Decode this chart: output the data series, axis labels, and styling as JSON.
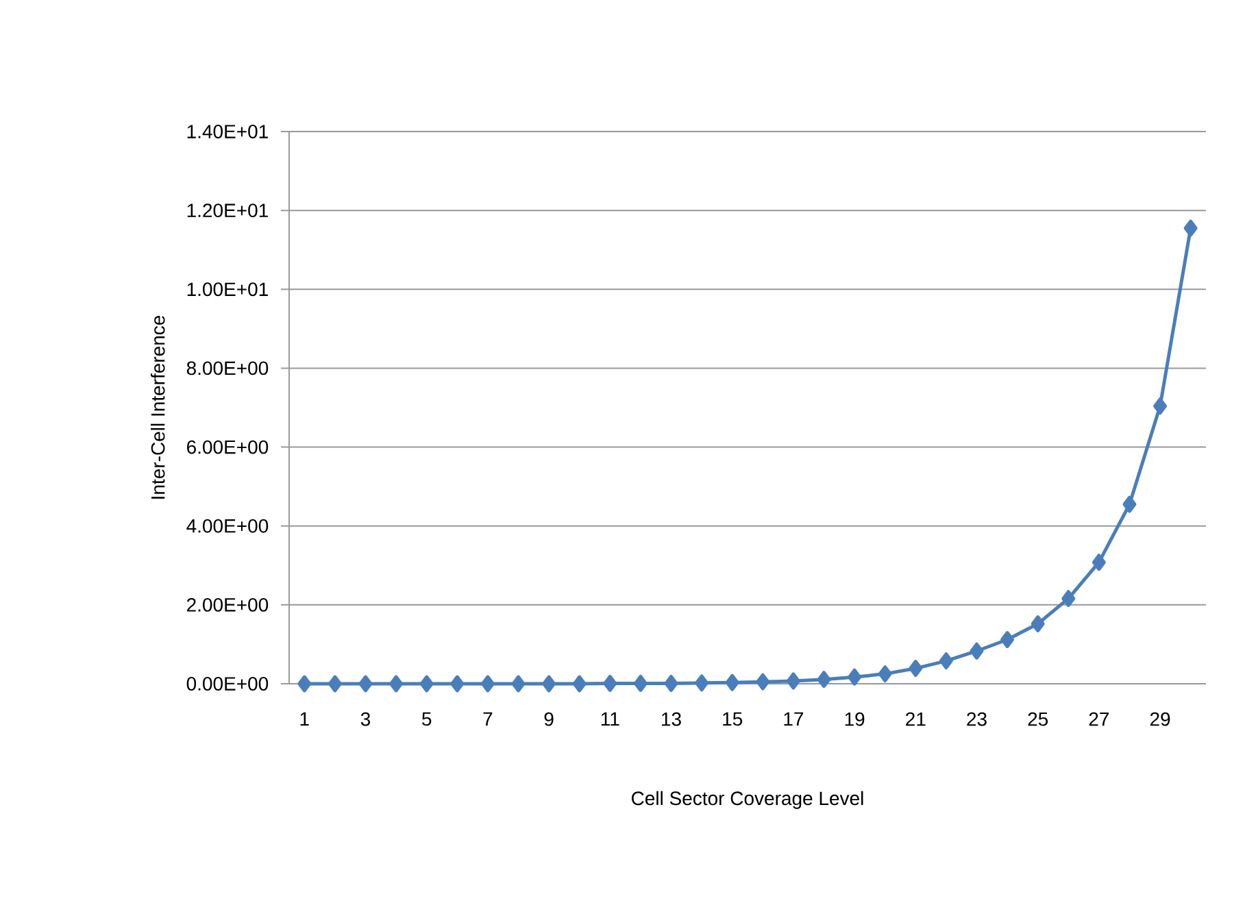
{
  "chart_data": {
    "type": "line",
    "xlabel": "Cell Sector Coverage Level",
    "ylabel": "Inter-Cell Interference",
    "categories": [
      "1",
      null,
      "3",
      null,
      "5",
      null,
      "7",
      null,
      "9",
      null,
      "11",
      null,
      "13",
      null,
      "15",
      null,
      "17",
      null,
      "19",
      null,
      "21",
      null,
      "23",
      null,
      "25",
      null,
      "27",
      null,
      "29",
      null
    ],
    "series": [
      {
        "color": "#4a7ebb",
        "values": [
          0.0,
          0.0,
          0.0,
          0.0,
          0.0,
          0.0,
          0.0,
          0.0,
          0.0,
          0.0,
          0.01,
          0.01,
          0.01,
          0.02,
          0.03,
          0.05,
          0.07,
          0.11,
          0.17,
          0.25,
          0.39,
          0.58,
          0.83,
          1.12,
          1.52,
          2.16,
          3.08,
          4.55,
          7.04,
          11.55
        ]
      }
    ],
    "ylim": [
      0,
      14
    ],
    "yticks": [
      {
        "value": 0,
        "label": "0.00E+00"
      },
      {
        "value": 2,
        "label": "2.00E+00"
      },
      {
        "value": 4,
        "label": "4.00E+00"
      },
      {
        "value": 6,
        "label": "6.00E+00"
      },
      {
        "value": 8,
        "label": "8.00E+00"
      },
      {
        "value": 10,
        "label": "1.00E+01"
      },
      {
        "value": 12,
        "label": "1.20E+01"
      },
      {
        "value": 14,
        "label": "1.40E+01"
      }
    ],
    "grid": "y",
    "marker": "diamond",
    "line_style": "solid"
  }
}
